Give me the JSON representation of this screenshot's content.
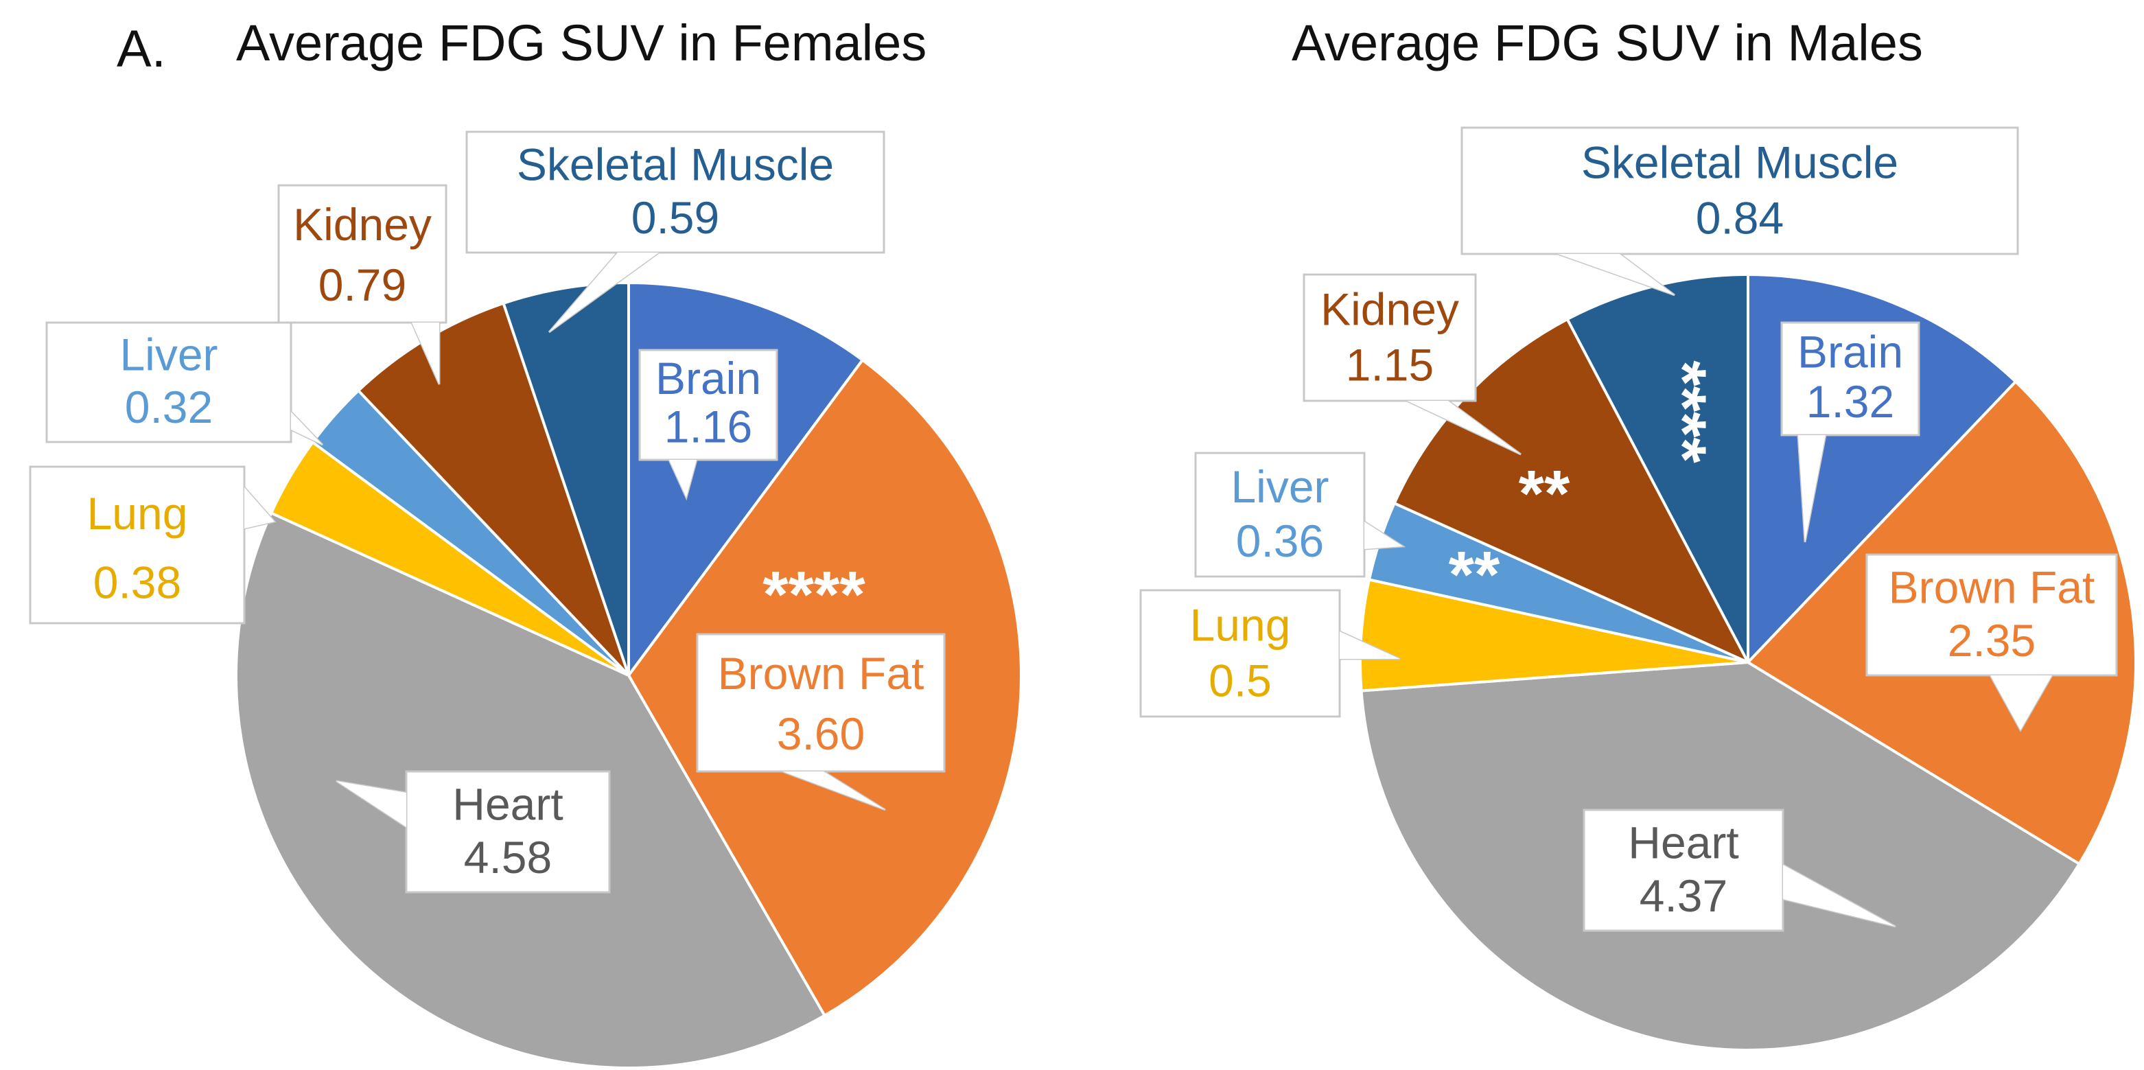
{
  "panel_label": "A.",
  "chart_data": [
    {
      "type": "pie",
      "title": "Average FDG SUV in Females",
      "slices": [
        {
          "label": "Brain",
          "value_text": "1.16",
          "value": 1.16,
          "color": "#4472C4",
          "text_color": "#4472C4",
          "stars": ""
        },
        {
          "label": "Brown Fat",
          "value_text": "3.60",
          "value": 3.6,
          "color": "#ED7D31",
          "text_color": "#ED7D31",
          "stars": "****"
        },
        {
          "label": "Heart",
          "value_text": "4.58",
          "value": 4.58,
          "color": "#A5A5A5",
          "text_color": "#595959",
          "stars": ""
        },
        {
          "label": "Lung",
          "value_text": "0.38",
          "value": 0.38,
          "color": "#FFC000",
          "text_color": "#E6AC00",
          "stars": ""
        },
        {
          "label": "Liver",
          "value_text": "0.32",
          "value": 0.32,
          "color": "#5B9BD5",
          "text_color": "#5B9BD5",
          "stars": ""
        },
        {
          "label": "Kidney",
          "value_text": "0.79",
          "value": 0.79,
          "color": "#9E480E",
          "text_color": "#9E480E",
          "stars": ""
        },
        {
          "label": "Skeletal Muscle",
          "value_text": "0.59",
          "value": 0.59,
          "color": "#255E91",
          "text_color": "#255E91",
          "stars": ""
        }
      ]
    },
    {
      "type": "pie",
      "title": "Average FDG SUV in Males",
      "slices": [
        {
          "label": "Brain",
          "value_text": "1.32",
          "value": 1.32,
          "color": "#4472C4",
          "text_color": "#4472C4",
          "stars": ""
        },
        {
          "label": "Brown Fat",
          "value_text": "2.35",
          "value": 2.35,
          "color": "#ED7D31",
          "text_color": "#ED7D31",
          "stars": ""
        },
        {
          "label": "Heart",
          "value_text": "4.37",
          "value": 4.37,
          "color": "#A5A5A5",
          "text_color": "#595959",
          "stars": ""
        },
        {
          "label": "Lung",
          "value_text": "0.5",
          "value": 0.5,
          "color": "#FFC000",
          "text_color": "#E6AC00",
          "stars": ""
        },
        {
          "label": "Liver",
          "value_text": "0.36",
          "value": 0.36,
          "color": "#5B9BD5",
          "text_color": "#5B9BD5",
          "stars": "**"
        },
        {
          "label": "Kidney",
          "value_text": "1.15",
          "value": 1.15,
          "color": "#9E480E",
          "text_color": "#9E480E",
          "stars": "**"
        },
        {
          "label": "Skeletal Muscle",
          "value_text": "0.84",
          "value": 0.84,
          "color": "#255E91",
          "text_color": "#255E91",
          "stars": "****"
        }
      ]
    }
  ]
}
